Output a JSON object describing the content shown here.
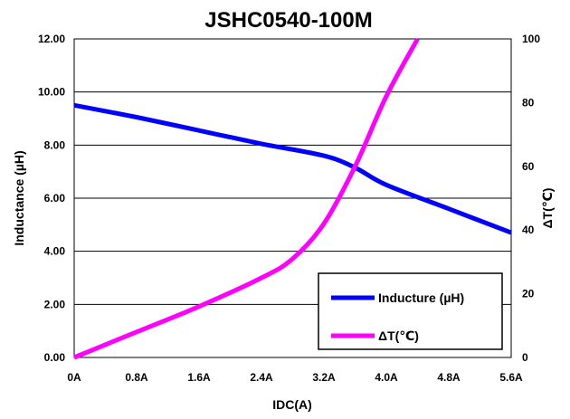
{
  "chart_data": {
    "type": "line",
    "title": "JSHC0540-100M",
    "xlabel": "IDC(A)",
    "ylabel": "Inductance (µH)",
    "y2label": "ΔT(℃)",
    "x_ticks": [
      "0A",
      "0.8A",
      "1.6A",
      "2.4A",
      "3.2A",
      "4.0A",
      "4.8A",
      "5.6A"
    ],
    "y_ticks": [
      "0.00",
      "2.00",
      "4.00",
      "6.00",
      "8.00",
      "10.00",
      "12.00"
    ],
    "y2_ticks": [
      "0",
      "20",
      "40",
      "60",
      "80",
      "100"
    ],
    "xlim": [
      0,
      5.6
    ],
    "ylim": [
      0,
      12
    ],
    "y2lim": [
      0,
      100
    ],
    "grid": "horizontal",
    "legend": "bottom-right",
    "series": [
      {
        "name": "Inducture (µH)",
        "axis": "left",
        "color": "#0000ff",
        "x": [
          0,
          0.8,
          1.6,
          2.4,
          3.2,
          3.6,
          4.0,
          4.8,
          5.6
        ],
        "values": [
          9.5,
          9.05,
          8.55,
          8.05,
          7.6,
          7.15,
          6.5,
          5.6,
          4.7
        ]
      },
      {
        "name": "ΔT(℃)",
        "axis": "right",
        "color": "#ff00ff",
        "x": [
          0,
          0.8,
          1.6,
          2.4,
          2.8,
          3.2,
          3.6,
          4.0,
          4.4
        ],
        "values": [
          0,
          8,
          16,
          25,
          31,
          42,
          60,
          82,
          100
        ]
      }
    ]
  }
}
